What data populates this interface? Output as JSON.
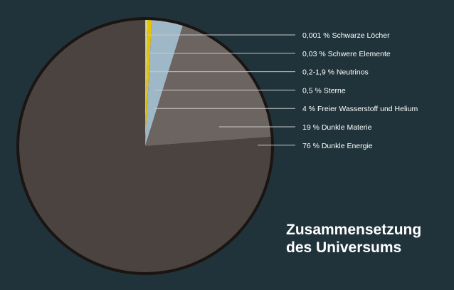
{
  "colors": {
    "background": "#20333a",
    "pie_outline": "#1a1512",
    "dark_energy": "#4a4340",
    "dark_matter": "#6c6461",
    "free_gas": "#9fb8c8",
    "stars": "#e8c400",
    "neutrinos": "#d8d48a",
    "heavy_elements": "#f2e36a",
    "black_holes": "#ffffff",
    "label_text": "#ffffff",
    "leader_line": "#c9c9c9"
  },
  "title": {
    "line1": "Zusammensetzung",
    "line2": "des Universums"
  },
  "chart_data": {
    "type": "pie",
    "title": "Zusammensetzung des Universums",
    "start_angle_deg": 0,
    "direction": "clockwise",
    "slices": [
      {
        "label": "0,001 % Schwarze Löcher",
        "value": 0.001,
        "color": "#ffffff"
      },
      {
        "label": "0,03 % Schwere Elemente",
        "value": 0.03,
        "color": "#f2e36a"
      },
      {
        "label": "0,2-1,9 % Neutrinos",
        "value": 0.3,
        "color": "#d8d48a"
      },
      {
        "label": "0,5 % Sterne",
        "value": 0.5,
        "color": "#e8c400"
      },
      {
        "label": "4 % Freier Wasserstoff und Helium",
        "value": 4,
        "color": "#9fb8c8"
      },
      {
        "label": "19 % Dunkle Materie",
        "value": 19,
        "color": "#6c6461"
      },
      {
        "label": "76 % Dunkle Energie",
        "value": 76.169,
        "color": "#4a4340"
      }
    ]
  }
}
